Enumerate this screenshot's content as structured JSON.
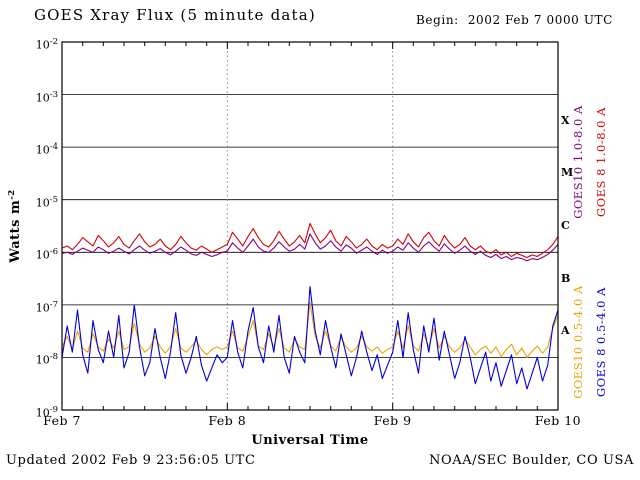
{
  "header": {
    "title": "GOES Xray Flux (5 minute data)",
    "begin_label": "Begin:",
    "begin_value": "2002 Feb 7 0000 UTC"
  },
  "footer": {
    "updated": "Updated 2002 Feb 9 23:56:05 UTC",
    "credit": "NOAA/SEC Boulder, CO USA"
  },
  "chart_data": {
    "type": "line",
    "title": "GOES Xray Flux (5 minute data)",
    "xlabel": "Universal Time",
    "ylabel": "Watts m^-2",
    "ylabel_base": "Watts m",
    "ylabel_exp": "-2",
    "y_scale": "log",
    "ylim_exponents": [
      -9,
      -2
    ],
    "y_tick_exponents": [
      -2,
      -3,
      -4,
      -5,
      -6,
      -7,
      -8,
      -9
    ],
    "grid_line_exponents": [
      -3,
      -4,
      -5,
      -6,
      -7,
      -8
    ],
    "x_range_hours": [
      0,
      72
    ],
    "x_minor_tick_hours": 3,
    "day_boundary_hours": [
      24,
      48
    ],
    "x_tick_labels": [
      {
        "label": "Feb 7",
        "hour": 0
      },
      {
        "label": "Feb 8",
        "hour": 24
      },
      {
        "label": "Feb 9",
        "hour": 48
      },
      {
        "label": "Feb 10",
        "hour": 72
      }
    ],
    "flare_classes": [
      {
        "label": "X",
        "center_exponent": -3.5
      },
      {
        "label": "M",
        "center_exponent": -4.5
      },
      {
        "label": "C",
        "center_exponent": -5.5
      },
      {
        "label": "B",
        "center_exponent": -6.5
      },
      {
        "label": "A",
        "center_exponent": -7.5
      }
    ],
    "t_start_hour": 0,
    "t_step_hours": 0.75,
    "legend_position": "right-rotated",
    "series": [
      {
        "name": "GOES10 1.0-8.0 A",
        "color": "#800080",
        "log10_watts": [
          -6.02,
          -6.0,
          -6.04,
          -5.98,
          -5.92,
          -5.96,
          -6.0,
          -5.9,
          -5.95,
          -6.02,
          -5.98,
          -5.92,
          -5.98,
          -6.03,
          -5.95,
          -5.88,
          -5.96,
          -6.02,
          -5.98,
          -5.93,
          -6.0,
          -6.05,
          -5.98,
          -5.9,
          -5.96,
          -6.03,
          -6.06,
          -6.0,
          -6.04,
          -6.08,
          -6.05,
          -6.0,
          -5.98,
          -5.82,
          -5.92,
          -6.0,
          -5.88,
          -5.75,
          -5.9,
          -5.98,
          -6.0,
          -5.92,
          -5.8,
          -5.9,
          -5.98,
          -5.94,
          -5.85,
          -5.94,
          -5.65,
          -5.82,
          -5.94,
          -5.88,
          -5.78,
          -5.9,
          -5.98,
          -5.86,
          -5.92,
          -6.02,
          -5.96,
          -5.9,
          -5.98,
          -6.04,
          -5.96,
          -6.02,
          -5.98,
          -5.9,
          -5.96,
          -5.82,
          -5.92,
          -6.0,
          -5.88,
          -5.8,
          -5.9,
          -5.98,
          -5.84,
          -5.94,
          -6.02,
          -5.96,
          -5.88,
          -5.98,
          -6.04,
          -5.98,
          -6.06,
          -6.1,
          -6.04,
          -6.12,
          -6.08,
          -6.14,
          -6.1,
          -6.12,
          -6.16,
          -6.12,
          -6.14,
          -6.1,
          -6.04,
          -5.96,
          -5.85
        ]
      },
      {
        "name": "GOES 8 1.0-8.0 A",
        "color": "#d40000",
        "log10_watts": [
          -5.92,
          -5.88,
          -5.95,
          -5.85,
          -5.72,
          -5.8,
          -5.88,
          -5.68,
          -5.78,
          -5.9,
          -5.82,
          -5.7,
          -5.85,
          -5.92,
          -5.78,
          -5.65,
          -5.8,
          -5.9,
          -5.85,
          -5.75,
          -5.88,
          -5.95,
          -5.85,
          -5.7,
          -5.82,
          -5.92,
          -5.96,
          -5.88,
          -5.94,
          -6.0,
          -5.95,
          -5.9,
          -5.85,
          -5.62,
          -5.75,
          -5.88,
          -5.7,
          -5.55,
          -5.72,
          -5.85,
          -5.9,
          -5.78,
          -5.6,
          -5.75,
          -5.88,
          -5.8,
          -5.68,
          -5.82,
          -5.45,
          -5.65,
          -5.82,
          -5.72,
          -5.58,
          -5.78,
          -5.88,
          -5.7,
          -5.8,
          -5.92,
          -5.85,
          -5.75,
          -5.88,
          -5.95,
          -5.85,
          -5.92,
          -5.88,
          -5.75,
          -5.85,
          -5.65,
          -5.8,
          -5.9,
          -5.72,
          -5.62,
          -5.78,
          -5.88,
          -5.68,
          -5.82,
          -5.92,
          -5.85,
          -5.72,
          -5.88,
          -5.95,
          -5.88,
          -5.98,
          -6.02,
          -5.95,
          -6.05,
          -6.0,
          -6.08,
          -6.02,
          -6.06,
          -6.1,
          -6.05,
          -6.08,
          -6.02,
          -5.95,
          -5.85,
          -5.7
        ]
      },
      {
        "name": "GOES10 0.5-4.0 A",
        "color": "#eea200",
        "log10_watts": [
          -7.8,
          -7.6,
          -7.85,
          -7.5,
          -7.82,
          -7.9,
          -7.55,
          -7.8,
          -7.88,
          -7.65,
          -7.82,
          -7.5,
          -7.85,
          -7.8,
          -7.35,
          -7.75,
          -7.9,
          -7.82,
          -7.6,
          -7.8,
          -7.92,
          -7.8,
          -7.45,
          -7.82,
          -7.9,
          -7.8,
          -7.68,
          -7.85,
          -7.95,
          -7.85,
          -7.8,
          -7.85,
          -7.8,
          -7.5,
          -7.82,
          -7.88,
          -7.6,
          -7.3,
          -7.78,
          -7.85,
          -7.55,
          -7.8,
          -7.45,
          -7.82,
          -7.9,
          -7.65,
          -7.8,
          -7.85,
          -6.95,
          -7.6,
          -7.82,
          -7.5,
          -7.78,
          -7.88,
          -7.62,
          -7.8,
          -7.9,
          -7.82,
          -7.6,
          -7.8,
          -7.88,
          -7.8,
          -7.92,
          -7.85,
          -7.8,
          -7.5,
          -7.82,
          -7.4,
          -7.78,
          -7.88,
          -7.55,
          -7.8,
          -7.45,
          -7.82,
          -7.6,
          -7.8,
          -7.9,
          -7.82,
          -7.65,
          -7.8,
          -7.95,
          -7.85,
          -7.78,
          -7.92,
          -7.8,
          -7.98,
          -7.85,
          -7.75,
          -7.95,
          -7.82,
          -8.0,
          -7.88,
          -7.78,
          -7.92,
          -7.8,
          -7.45,
          -7.2
        ]
      },
      {
        "name": "GOES 8 0.5-4.0 A",
        "color": "#0000dd",
        "log10_watts": [
          -8.0,
          -7.4,
          -7.9,
          -7.1,
          -7.95,
          -8.3,
          -7.3,
          -7.85,
          -8.1,
          -7.5,
          -8.0,
          -7.2,
          -8.2,
          -7.9,
          -7.0,
          -7.8,
          -8.35,
          -8.1,
          -7.45,
          -8.0,
          -8.4,
          -7.9,
          -7.15,
          -7.95,
          -8.3,
          -8.0,
          -7.6,
          -8.15,
          -8.45,
          -8.2,
          -7.95,
          -8.1,
          -8.0,
          -7.3,
          -7.9,
          -8.2,
          -7.5,
          -7.05,
          -7.8,
          -8.1,
          -7.4,
          -7.9,
          -7.2,
          -8.0,
          -8.3,
          -7.6,
          -7.9,
          -8.1,
          -6.65,
          -7.5,
          -7.95,
          -7.3,
          -7.8,
          -8.2,
          -7.55,
          -7.95,
          -8.35,
          -8.0,
          -7.5,
          -7.9,
          -8.25,
          -7.95,
          -8.4,
          -8.15,
          -7.9,
          -7.3,
          -8.0,
          -7.15,
          -7.85,
          -8.3,
          -7.4,
          -7.9,
          -7.25,
          -8.05,
          -7.5,
          -7.95,
          -8.4,
          -8.1,
          -7.6,
          -8.0,
          -8.5,
          -8.2,
          -7.9,
          -8.45,
          -8.1,
          -8.55,
          -8.25,
          -7.95,
          -8.5,
          -8.2,
          -8.6,
          -8.3,
          -8.0,
          -8.45,
          -8.15,
          -7.4,
          -7.1
        ]
      }
    ]
  }
}
